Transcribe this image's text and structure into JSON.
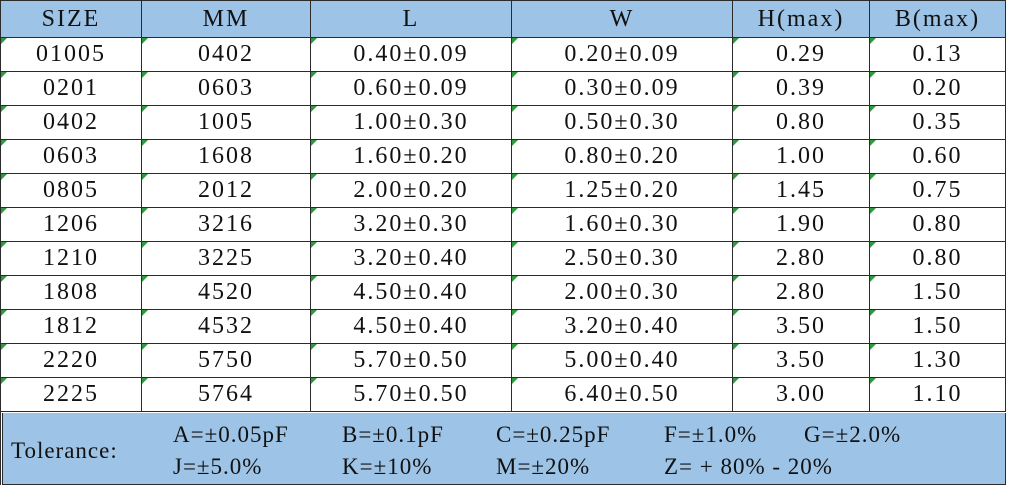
{
  "table": {
    "header": [
      "SIZE",
      "MM",
      "L",
      "W",
      "H(max)",
      "B(max)"
    ],
    "rows": [
      [
        "01005",
        "0402",
        "0.40±0.09",
        "0.20±0.09",
        "0.29",
        "0.13"
      ],
      [
        "0201",
        "0603",
        "0.60±0.09",
        "0.30±0.09",
        "0.39",
        "0.20"
      ],
      [
        "0402",
        "1005",
        "1.00±0.30",
        "0.50±0.30",
        "0.80",
        "0.35"
      ],
      [
        "0603",
        "1608",
        "1.60±0.20",
        "0.80±0.20",
        "1.00",
        "0.60"
      ],
      [
        "0805",
        "2012",
        "2.00±0.20",
        "1.25±0.20",
        "1.45",
        "0.75"
      ],
      [
        "1206",
        "3216",
        "3.20±0.30",
        "1.60±0.30",
        "1.90",
        "0.80"
      ],
      [
        "1210",
        "3225",
        "3.20±0.40",
        "2.50±0.30",
        "2.80",
        "0.80"
      ],
      [
        "1808",
        "4520",
        "4.50±0.40",
        "2.00±0.30",
        "2.80",
        "1.50"
      ],
      [
        "1812",
        "4532",
        "4.50±0.40",
        "3.20±0.40",
        "3.50",
        "1.50"
      ],
      [
        "2220",
        "5750",
        "5.70±0.50",
        "5.00±0.40",
        "3.50",
        "1.30"
      ],
      [
        "2225",
        "5764",
        "5.70±0.50",
        "6.40±0.50",
        "3.00",
        "1.10"
      ]
    ],
    "footer": {
      "label": "Tolerance:",
      "items": [
        [
          "A=±0.05pF",
          "B=±0.1pF",
          "C=±0.25pF",
          "F=±1.0%",
          "G=±2.0%"
        ],
        [
          "J=±5.0%",
          "K=±10%",
          "M=±20%",
          "Z= + 80% - 20%"
        ]
      ]
    }
  }
}
